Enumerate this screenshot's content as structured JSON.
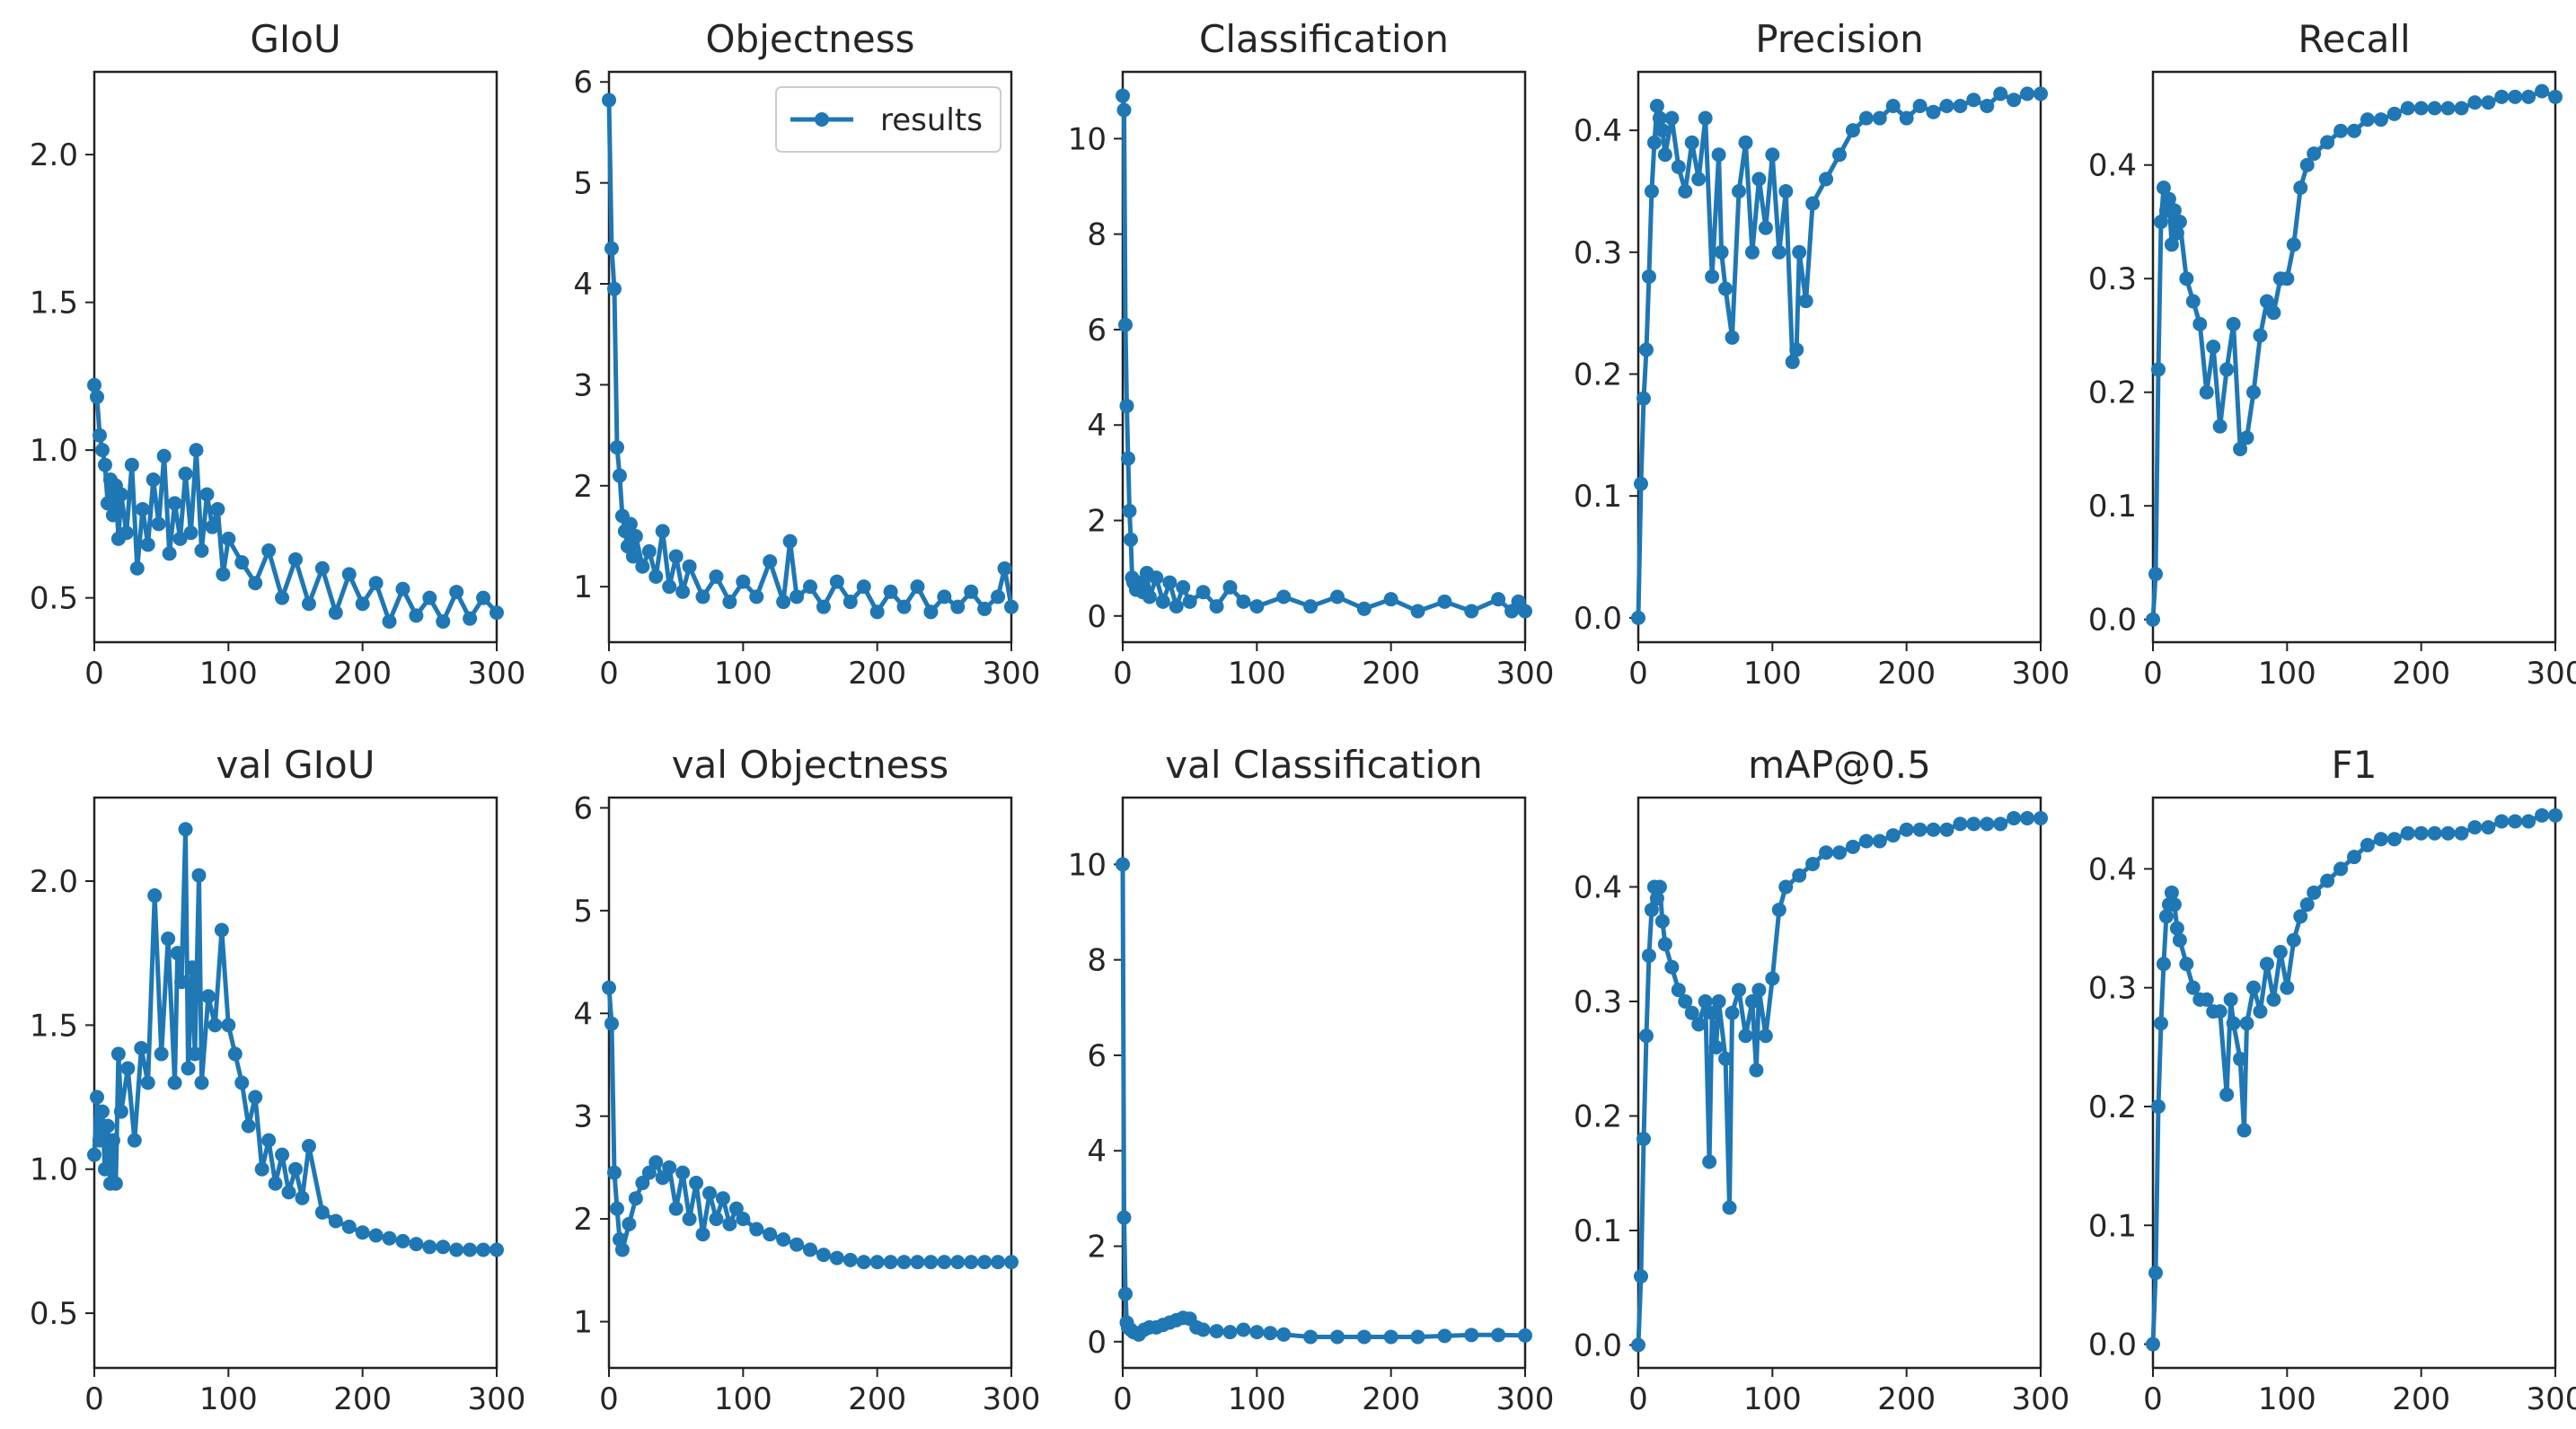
{
  "figure": {
    "legend_label": "results",
    "line_color": "#1f77b4"
  },
  "chart_data": [
    {
      "type": "line",
      "title": "GIoU",
      "xlim": [
        0,
        300
      ],
      "ylim": [
        0.35,
        2.28
      ],
      "xticks": [
        0,
        100,
        200,
        300
      ],
      "yticks": [
        0.5,
        1.0,
        1.5,
        2.0
      ],
      "x": [
        0,
        2,
        4,
        6,
        8,
        10,
        12,
        14,
        16,
        18,
        20,
        24,
        28,
        32,
        36,
        40,
        44,
        48,
        52,
        56,
        60,
        64,
        68,
        72,
        76,
        80,
        84,
        88,
        92,
        96,
        100,
        110,
        120,
        130,
        140,
        150,
        160,
        170,
        180,
        190,
        200,
        210,
        220,
        230,
        240,
        250,
        260,
        270,
        280,
        290,
        300
      ],
      "values": [
        1.22,
        1.18,
        1.05,
        1.0,
        0.95,
        0.82,
        0.9,
        0.78,
        0.88,
        0.7,
        0.85,
        0.72,
        0.95,
        0.6,
        0.8,
        0.68,
        0.9,
        0.75,
        0.98,
        0.65,
        0.82,
        0.7,
        0.92,
        0.72,
        1.0,
        0.66,
        0.85,
        0.74,
        0.8,
        0.58,
        0.7,
        0.62,
        0.55,
        0.66,
        0.5,
        0.63,
        0.48,
        0.6,
        0.45,
        0.58,
        0.48,
        0.55,
        0.42,
        0.53,
        0.44,
        0.5,
        0.42,
        0.52,
        0.43,
        0.5,
        0.45
      ]
    },
    {
      "type": "line",
      "title": "Objectness",
      "xlim": [
        0,
        300
      ],
      "ylim": [
        0.45,
        6.1
      ],
      "xticks": [
        0,
        100,
        200,
        300
      ],
      "yticks": [
        1,
        2,
        3,
        4,
        5,
        6
      ],
      "legend": {
        "label": "results",
        "loc": "upper right"
      },
      "x": [
        0,
        2,
        4,
        6,
        8,
        10,
        12,
        14,
        16,
        18,
        20,
        25,
        30,
        35,
        40,
        45,
        50,
        55,
        60,
        70,
        80,
        90,
        100,
        110,
        120,
        130,
        135,
        140,
        150,
        160,
        170,
        180,
        190,
        200,
        210,
        220,
        230,
        240,
        250,
        260,
        270,
        280,
        290,
        295,
        300
      ],
      "values": [
        5.82,
        4.35,
        3.95,
        2.38,
        2.1,
        1.7,
        1.55,
        1.4,
        1.62,
        1.3,
        1.5,
        1.2,
        1.35,
        1.1,
        1.55,
        1.0,
        1.3,
        0.95,
        1.2,
        0.9,
        1.1,
        0.85,
        1.05,
        0.9,
        1.25,
        0.85,
        1.45,
        0.9,
        1.0,
        0.8,
        1.05,
        0.85,
        1.0,
        0.75,
        0.95,
        0.8,
        1.0,
        0.75,
        0.9,
        0.8,
        0.95,
        0.78,
        0.9,
        1.18,
        0.8
      ]
    },
    {
      "type": "line",
      "title": "Classification",
      "xlim": [
        0,
        300
      ],
      "ylim": [
        -0.55,
        11.4
      ],
      "xticks": [
        0,
        100,
        200,
        300
      ],
      "yticks": [
        0,
        2,
        4,
        6,
        8,
        10
      ],
      "x": [
        0,
        1,
        2,
        3,
        4,
        5,
        6,
        7,
        8,
        10,
        12,
        15,
        18,
        20,
        25,
        30,
        35,
        40,
        45,
        50,
        60,
        70,
        80,
        90,
        100,
        120,
        140,
        160,
        180,
        200,
        220,
        240,
        260,
        280,
        290,
        295,
        300
      ],
      "values": [
        10.9,
        10.6,
        6.1,
        4.4,
        3.3,
        2.2,
        1.6,
        0.8,
        0.7,
        0.55,
        0.7,
        0.5,
        0.9,
        0.4,
        0.8,
        0.3,
        0.7,
        0.2,
        0.6,
        0.3,
        0.5,
        0.2,
        0.6,
        0.3,
        0.2,
        0.4,
        0.2,
        0.4,
        0.15,
        0.35,
        0.1,
        0.3,
        0.1,
        0.35,
        0.1,
        0.3,
        0.1
      ]
    },
    {
      "type": "line",
      "title": "Precision",
      "xlim": [
        0,
        300
      ],
      "ylim": [
        -0.02,
        0.448
      ],
      "xticks": [
        0,
        100,
        200,
        300
      ],
      "yticks": [
        0.0,
        0.1,
        0.2,
        0.3,
        0.4
      ],
      "x": [
        0,
        2,
        4,
        6,
        8,
        10,
        12,
        14,
        16,
        18,
        20,
        25,
        30,
        35,
        40,
        45,
        50,
        55,
        60,
        62,
        65,
        70,
        75,
        80,
        85,
        90,
        95,
        100,
        105,
        110,
        115,
        118,
        120,
        125,
        130,
        140,
        150,
        160,
        170,
        180,
        190,
        200,
        210,
        220,
        230,
        240,
        250,
        260,
        270,
        280,
        290,
        300
      ],
      "values": [
        0.0,
        0.11,
        0.18,
        0.22,
        0.28,
        0.35,
        0.39,
        0.42,
        0.41,
        0.4,
        0.38,
        0.41,
        0.37,
        0.35,
        0.39,
        0.36,
        0.41,
        0.28,
        0.38,
        0.3,
        0.27,
        0.23,
        0.35,
        0.39,
        0.3,
        0.36,
        0.32,
        0.38,
        0.3,
        0.35,
        0.21,
        0.22,
        0.3,
        0.26,
        0.34,
        0.36,
        0.38,
        0.4,
        0.41,
        0.41,
        0.42,
        0.41,
        0.42,
        0.415,
        0.42,
        0.42,
        0.425,
        0.42,
        0.43,
        0.425,
        0.43,
        0.43
      ]
    },
    {
      "type": "line",
      "title": "Recall",
      "xlim": [
        0,
        300
      ],
      "ylim": [
        -0.02,
        0.482
      ],
      "xticks": [
        0,
        100,
        200,
        300
      ],
      "yticks": [
        0.0,
        0.1,
        0.2,
        0.3,
        0.4
      ],
      "x": [
        0,
        2,
        4,
        6,
        8,
        10,
        12,
        14,
        16,
        18,
        20,
        25,
        30,
        35,
        40,
        45,
        50,
        55,
        60,
        65,
        70,
        75,
        80,
        85,
        90,
        95,
        100,
        105,
        110,
        115,
        120,
        130,
        140,
        150,
        160,
        170,
        180,
        190,
        200,
        210,
        220,
        230,
        240,
        250,
        260,
        270,
        280,
        290,
        300
      ],
      "values": [
        0.0,
        0.04,
        0.22,
        0.35,
        0.38,
        0.36,
        0.37,
        0.33,
        0.36,
        0.34,
        0.35,
        0.3,
        0.28,
        0.26,
        0.2,
        0.24,
        0.17,
        0.22,
        0.26,
        0.15,
        0.16,
        0.2,
        0.25,
        0.28,
        0.27,
        0.3,
        0.3,
        0.33,
        0.38,
        0.4,
        0.41,
        0.42,
        0.43,
        0.43,
        0.44,
        0.44,
        0.445,
        0.45,
        0.45,
        0.45,
        0.45,
        0.45,
        0.455,
        0.455,
        0.46,
        0.46,
        0.46,
        0.465,
        0.46
      ]
    },
    {
      "type": "line",
      "title": "val GIoU",
      "xlim": [
        0,
        300
      ],
      "ylim": [
        0.31,
        2.29
      ],
      "xticks": [
        0,
        100,
        200,
        300
      ],
      "yticks": [
        0.5,
        1.0,
        1.5,
        2.0
      ],
      "x": [
        0,
        2,
        4,
        6,
        8,
        10,
        12,
        14,
        16,
        18,
        20,
        25,
        30,
        35,
        40,
        45,
        50,
        55,
        60,
        62,
        65,
        68,
        70,
        73,
        75,
        78,
        80,
        85,
        90,
        95,
        100,
        105,
        110,
        115,
        120,
        125,
        130,
        135,
        140,
        145,
        150,
        155,
        160,
        170,
        180,
        190,
        200,
        210,
        220,
        230,
        240,
        250,
        260,
        270,
        280,
        290,
        300
      ],
      "values": [
        1.05,
        1.25,
        1.1,
        1.2,
        1.0,
        1.15,
        0.95,
        1.1,
        0.95,
        1.4,
        1.2,
        1.35,
        1.1,
        1.42,
        1.3,
        1.95,
        1.4,
        1.8,
        1.3,
        1.75,
        1.65,
        2.18,
        1.35,
        1.7,
        1.4,
        2.02,
        1.3,
        1.6,
        1.5,
        1.83,
        1.5,
        1.4,
        1.3,
        1.15,
        1.25,
        1.0,
        1.1,
        0.95,
        1.05,
        0.92,
        1.0,
        0.9,
        1.08,
        0.85,
        0.82,
        0.8,
        0.78,
        0.77,
        0.76,
        0.75,
        0.74,
        0.73,
        0.73,
        0.72,
        0.72,
        0.72,
        0.72
      ]
    },
    {
      "type": "line",
      "title": "val Objectness",
      "xlim": [
        0,
        300
      ],
      "ylim": [
        0.55,
        6.1
      ],
      "xticks": [
        0,
        100,
        200,
        300
      ],
      "yticks": [
        1,
        2,
        3,
        4,
        5,
        6
      ],
      "x": [
        0,
        2,
        4,
        6,
        8,
        10,
        15,
        20,
        25,
        30,
        35,
        40,
        45,
        50,
        55,
        60,
        65,
        70,
        75,
        80,
        85,
        90,
        95,
        100,
        110,
        120,
        130,
        140,
        150,
        160,
        170,
        180,
        190,
        200,
        210,
        220,
        230,
        240,
        250,
        260,
        270,
        280,
        290,
        300
      ],
      "values": [
        4.25,
        3.9,
        2.45,
        2.1,
        1.8,
        1.7,
        1.95,
        2.2,
        2.35,
        2.45,
        2.55,
        2.4,
        2.5,
        2.1,
        2.45,
        2.0,
        2.35,
        1.85,
        2.25,
        2.0,
        2.2,
        1.95,
        2.1,
        2.0,
        1.9,
        1.85,
        1.8,
        1.75,
        1.7,
        1.65,
        1.62,
        1.6,
        1.58,
        1.58,
        1.58,
        1.58,
        1.58,
        1.58,
        1.58,
        1.58,
        1.58,
        1.58,
        1.58,
        1.58
      ]
    },
    {
      "type": "line",
      "title": "val Classification",
      "xlim": [
        0,
        300
      ],
      "ylim": [
        -0.55,
        11.4
      ],
      "xticks": [
        0,
        100,
        200,
        300
      ],
      "yticks": [
        0,
        2,
        4,
        6,
        8,
        10
      ],
      "x": [
        0,
        1,
        2,
        3,
        4,
        6,
        8,
        12,
        16,
        20,
        25,
        30,
        35,
        40,
        45,
        50,
        55,
        60,
        70,
        80,
        90,
        100,
        110,
        120,
        140,
        160,
        180,
        200,
        220,
        240,
        260,
        280,
        300
      ],
      "values": [
        10.0,
        2.6,
        1.0,
        0.4,
        0.3,
        0.25,
        0.2,
        0.15,
        0.25,
        0.3,
        0.3,
        0.35,
        0.4,
        0.45,
        0.5,
        0.48,
        0.3,
        0.25,
        0.22,
        0.2,
        0.25,
        0.2,
        0.18,
        0.15,
        0.1,
        0.1,
        0.1,
        0.1,
        0.1,
        0.12,
        0.14,
        0.14,
        0.13
      ]
    },
    {
      "type": "line",
      "title": "mAP@0.5",
      "xlim": [
        0,
        300
      ],
      "ylim": [
        -0.02,
        0.478
      ],
      "xticks": [
        0,
        100,
        200,
        300
      ],
      "yticks": [
        0.0,
        0.1,
        0.2,
        0.3,
        0.4
      ],
      "x": [
        0,
        2,
        4,
        6,
        8,
        10,
        12,
        14,
        16,
        18,
        20,
        25,
        30,
        35,
        40,
        45,
        50,
        53,
        55,
        58,
        60,
        65,
        68,
        70,
        75,
        80,
        85,
        88,
        90,
        95,
        100,
        105,
        110,
        120,
        130,
        140,
        150,
        160,
        170,
        180,
        190,
        200,
        210,
        220,
        230,
        240,
        250,
        260,
        270,
        280,
        290,
        300
      ],
      "values": [
        0.0,
        0.06,
        0.18,
        0.27,
        0.34,
        0.38,
        0.4,
        0.39,
        0.4,
        0.37,
        0.35,
        0.33,
        0.31,
        0.3,
        0.29,
        0.28,
        0.3,
        0.16,
        0.29,
        0.26,
        0.3,
        0.25,
        0.12,
        0.29,
        0.31,
        0.27,
        0.3,
        0.24,
        0.31,
        0.27,
        0.32,
        0.38,
        0.4,
        0.41,
        0.42,
        0.43,
        0.43,
        0.435,
        0.44,
        0.44,
        0.445,
        0.45,
        0.45,
        0.45,
        0.45,
        0.455,
        0.455,
        0.455,
        0.455,
        0.46,
        0.46,
        0.46
      ]
    },
    {
      "type": "line",
      "title": "F1",
      "xlim": [
        0,
        300
      ],
      "ylim": [
        -0.02,
        0.46
      ],
      "xticks": [
        0,
        100,
        200,
        300
      ],
      "yticks": [
        0.0,
        0.1,
        0.2,
        0.3,
        0.4
      ],
      "x": [
        0,
        2,
        4,
        6,
        8,
        10,
        12,
        14,
        16,
        18,
        20,
        25,
        30,
        35,
        40,
        45,
        50,
        55,
        58,
        60,
        65,
        68,
        70,
        75,
        80,
        85,
        90,
        95,
        100,
        105,
        110,
        115,
        120,
        130,
        140,
        150,
        160,
        170,
        180,
        190,
        200,
        210,
        220,
        230,
        240,
        250,
        260,
        270,
        280,
        290,
        300
      ],
      "values": [
        0.0,
        0.06,
        0.2,
        0.27,
        0.32,
        0.36,
        0.37,
        0.38,
        0.37,
        0.35,
        0.34,
        0.32,
        0.3,
        0.29,
        0.29,
        0.28,
        0.28,
        0.21,
        0.29,
        0.27,
        0.24,
        0.18,
        0.27,
        0.3,
        0.28,
        0.32,
        0.29,
        0.33,
        0.3,
        0.34,
        0.36,
        0.37,
        0.38,
        0.39,
        0.4,
        0.41,
        0.42,
        0.425,
        0.425,
        0.43,
        0.43,
        0.43,
        0.43,
        0.43,
        0.435,
        0.435,
        0.44,
        0.44,
        0.44,
        0.445,
        0.445
      ]
    }
  ]
}
